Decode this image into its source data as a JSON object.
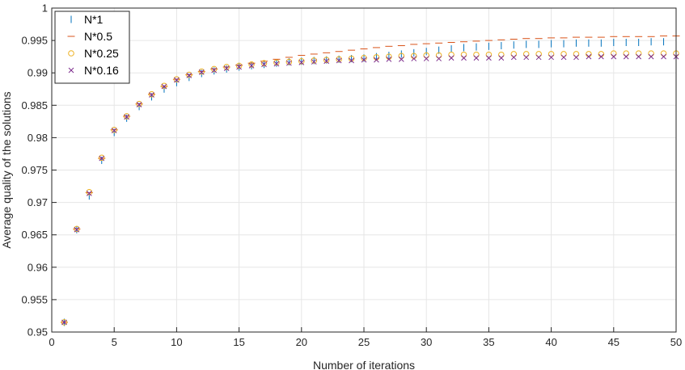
{
  "chart_data": {
    "type": "scatter",
    "title": "",
    "xlabel": "Number of iterations",
    "ylabel": "Average quality of the solutions",
    "xlim": [
      0,
      50
    ],
    "ylim": [
      0.95,
      1
    ],
    "x_ticks": [
      "0",
      "5",
      "10",
      "15",
      "20",
      "25",
      "30",
      "35",
      "40",
      "45",
      "50"
    ],
    "y_ticks": [
      "0.95",
      "0.955",
      "0.96",
      "0.965",
      "0.97",
      "0.975",
      "0.98",
      "0.985",
      "0.99",
      "0.995",
      "1"
    ],
    "grid": true,
    "legend_position": "top-left",
    "x": [
      1,
      2,
      3,
      4,
      5,
      6,
      7,
      8,
      9,
      10,
      11,
      12,
      13,
      14,
      15,
      16,
      17,
      18,
      19,
      20,
      21,
      22,
      23,
      24,
      25,
      26,
      27,
      28,
      29,
      30,
      31,
      32,
      33,
      34,
      35,
      36,
      37,
      38,
      39,
      40,
      41,
      42,
      43,
      44,
      45,
      46,
      47,
      48,
      49,
      50
    ],
    "series": [
      {
        "name": "N*1",
        "marker": "vline",
        "color": "#0072BD",
        "values": [
          0.9515,
          0.9658,
          0.971,
          0.9765,
          0.9808,
          0.983,
          0.9848,
          0.9863,
          0.9875,
          0.9885,
          0.9893,
          0.9899,
          0.9903,
          0.9906,
          0.9909,
          0.9911,
          0.9913,
          0.9915,
          0.9917,
          0.9918,
          0.9919,
          0.992,
          0.9921,
          0.9922,
          0.9923,
          0.9925,
          0.9927,
          0.9929,
          0.9931,
          0.9933,
          0.9935,
          0.9937,
          0.9939,
          0.994,
          0.9941,
          0.9942,
          0.9943,
          0.9944,
          0.9944,
          0.9945,
          0.9945,
          0.9946,
          0.9946,
          0.9946,
          0.9947,
          0.9947,
          0.9947,
          0.9948,
          0.9948,
          0.9948
        ]
      },
      {
        "name": "N*0.5",
        "marker": "hline",
        "color": "#D95319",
        "values": [
          0.9515,
          0.9659,
          0.9715,
          0.9768,
          0.9812,
          0.9833,
          0.9852,
          0.9867,
          0.9879,
          0.989,
          0.9897,
          0.9902,
          0.9906,
          0.9909,
          0.9912,
          0.9915,
          0.9918,
          0.9921,
          0.9924,
          0.9927,
          0.9929,
          0.9931,
          0.9933,
          0.9935,
          0.9937,
          0.9939,
          0.9941,
          0.9942,
          0.9944,
          0.9945,
          0.9946,
          0.9947,
          0.9948,
          0.9949,
          0.995,
          0.9951,
          0.9952,
          0.9953,
          0.9953,
          0.9954,
          0.9954,
          0.9955,
          0.9955,
          0.9955,
          0.9956,
          0.9956,
          0.9956,
          0.9956,
          0.9957,
          0.9957
        ]
      },
      {
        "name": "N*0.25",
        "marker": "circle",
        "color": "#EDB120",
        "values": [
          0.9515,
          0.9659,
          0.9716,
          0.9769,
          0.9812,
          0.9833,
          0.9852,
          0.9867,
          0.988,
          0.989,
          0.9897,
          0.9902,
          0.9906,
          0.9909,
          0.9911,
          0.9913,
          0.9915,
          0.9916,
          0.9917,
          0.9918,
          0.9919,
          0.992,
          0.9921,
          0.9922,
          0.9923,
          0.9924,
          0.9925,
          0.9926,
          0.9926,
          0.9927,
          0.9927,
          0.9928,
          0.9928,
          0.9928,
          0.9928,
          0.9928,
          0.9929,
          0.9929,
          0.9929,
          0.9929,
          0.9929,
          0.9929,
          0.9929,
          0.9929,
          0.993,
          0.993,
          0.993,
          0.993,
          0.993,
          0.993
        ]
      },
      {
        "name": "N*0.16",
        "marker": "cross",
        "color": "#7E2F8E",
        "values": [
          0.9515,
          0.9658,
          0.9714,
          0.9768,
          0.9811,
          0.9832,
          0.9851,
          0.9866,
          0.9879,
          0.9889,
          0.9896,
          0.9901,
          0.9904,
          0.9907,
          0.9909,
          0.9911,
          0.9913,
          0.9914,
          0.9915,
          0.9916,
          0.9917,
          0.9918,
          0.9919,
          0.9919,
          0.992,
          0.992,
          0.9921,
          0.9921,
          0.9922,
          0.9922,
          0.9922,
          0.9923,
          0.9923,
          0.9923,
          0.9923,
          0.9923,
          0.9924,
          0.9924,
          0.9924,
          0.9924,
          0.9924,
          0.9924,
          0.9925,
          0.9925,
          0.9925,
          0.9925,
          0.9925,
          0.9925,
          0.9925,
          0.9925
        ]
      }
    ]
  }
}
